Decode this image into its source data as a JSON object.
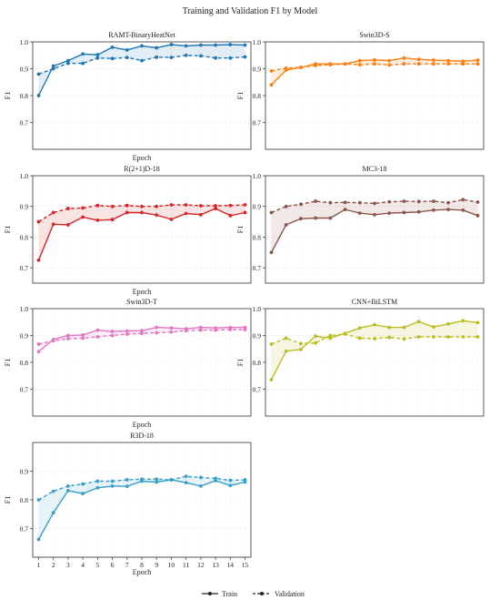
{
  "figure": {
    "title": "Training and Validation F1 by Model"
  },
  "legend": {
    "train_label": "Train",
    "validation_label": "Validation",
    "placement": "bottom-center"
  },
  "chart_data": [
    {
      "type": "line",
      "title": "RAMT-BinaryHeatNet",
      "xlabel": "Epoch",
      "ylabel": "F1",
      "x": [
        1,
        2,
        3,
        4,
        5,
        6,
        7,
        8,
        9,
        10,
        11,
        12,
        13,
        14,
        15
      ],
      "ylim": [
        0.6,
        1.0
      ],
      "yticks": [
        0.7,
        0.8,
        0.9,
        1.0
      ],
      "color": "#1f77b4",
      "show_xticks": false,
      "series": [
        {
          "name": "Train",
          "values": [
            0.8,
            0.91,
            0.93,
            0.955,
            0.952,
            0.98,
            0.97,
            0.985,
            0.978,
            0.99,
            0.985,
            0.988,
            0.988,
            0.99,
            0.988
          ]
        },
        {
          "name": "Validation",
          "values": [
            0.88,
            0.9,
            0.92,
            0.92,
            0.94,
            0.938,
            0.942,
            0.93,
            0.943,
            0.942,
            0.95,
            0.948,
            0.94,
            0.94,
            0.944
          ]
        }
      ]
    },
    {
      "type": "line",
      "title": "Swin3D-S",
      "xlabel": "",
      "ylabel": "F1",
      "x": [
        1,
        2,
        3,
        4,
        5,
        6,
        7,
        8,
        9,
        10,
        11,
        12,
        13,
        14,
        15
      ],
      "ylim": [
        0.6,
        1.0
      ],
      "yticks": [
        0.7,
        0.8,
        0.9,
        1.0
      ],
      "color": "#ff7f0e",
      "show_xticks": false,
      "series": [
        {
          "name": "Train",
          "values": [
            0.84,
            0.895,
            0.905,
            0.918,
            0.918,
            0.918,
            0.93,
            0.933,
            0.93,
            0.94,
            0.935,
            0.932,
            0.93,
            0.928,
            0.932
          ]
        },
        {
          "name": "Validation",
          "values": [
            0.892,
            0.902,
            0.905,
            0.912,
            0.915,
            0.918,
            0.915,
            0.918,
            0.914,
            0.918,
            0.918,
            0.918,
            0.918,
            0.918,
            0.918
          ]
        }
      ]
    },
    {
      "type": "line",
      "title": "R(2+1)D-18",
      "xlabel": "Epoch",
      "ylabel": "F1",
      "x": [
        1,
        2,
        3,
        4,
        5,
        6,
        7,
        8,
        9,
        10,
        11,
        12,
        13,
        14,
        15
      ],
      "ylim": [
        0.65,
        1.0
      ],
      "yticks": [
        0.7,
        0.8,
        0.9,
        1.0
      ],
      "color": "#d62728",
      "show_xticks": false,
      "series": [
        {
          "name": "Train",
          "values": [
            0.725,
            0.842,
            0.84,
            0.865,
            0.855,
            0.857,
            0.88,
            0.88,
            0.872,
            0.858,
            0.877,
            0.873,
            0.893,
            0.87,
            0.88
          ]
        },
        {
          "name": "Validation",
          "values": [
            0.85,
            0.88,
            0.893,
            0.895,
            0.903,
            0.9,
            0.903,
            0.9,
            0.9,
            0.905,
            0.905,
            0.902,
            0.902,
            0.903,
            0.905
          ]
        }
      ]
    },
    {
      "type": "line",
      "title": "MC3-18",
      "xlabel": "",
      "ylabel": "F1",
      "x": [
        1,
        2,
        3,
        4,
        5,
        6,
        7,
        8,
        9,
        10,
        11,
        12,
        13,
        14,
        15
      ],
      "ylim": [
        0.65,
        1.0
      ],
      "yticks": [
        0.7,
        0.8,
        0.9,
        1.0
      ],
      "color": "#8c564b",
      "show_xticks": false,
      "series": [
        {
          "name": "Train",
          "values": [
            0.75,
            0.84,
            0.86,
            0.862,
            0.862,
            0.89,
            0.878,
            0.873,
            0.878,
            0.88,
            0.882,
            0.888,
            0.89,
            0.888,
            0.87
          ]
        },
        {
          "name": "Validation",
          "values": [
            0.88,
            0.9,
            0.907,
            0.917,
            0.912,
            0.913,
            0.912,
            0.91,
            0.915,
            0.917,
            0.916,
            0.917,
            0.912,
            0.922,
            0.914
          ]
        }
      ]
    },
    {
      "type": "line",
      "title": "Swin3D-T",
      "xlabel": "Epoch",
      "ylabel": "F1",
      "x": [
        1,
        2,
        3,
        4,
        5,
        6,
        7,
        8,
        9,
        10,
        11,
        12,
        13,
        14,
        15
      ],
      "ylim": [
        0.6,
        1.0
      ],
      "yticks": [
        0.7,
        0.8,
        0.9,
        1.0
      ],
      "color": "#e377c2",
      "show_xticks": false,
      "series": [
        {
          "name": "Train",
          "values": [
            0.84,
            0.885,
            0.9,
            0.902,
            0.92,
            0.915,
            0.917,
            0.918,
            0.93,
            0.928,
            0.925,
            0.93,
            0.928,
            0.93,
            0.93
          ]
        },
        {
          "name": "Validation",
          "values": [
            0.868,
            0.88,
            0.888,
            0.89,
            0.895,
            0.9,
            0.905,
            0.908,
            0.91,
            0.913,
            0.918,
            0.92,
            0.92,
            0.922,
            0.922
          ]
        }
      ]
    },
    {
      "type": "line",
      "title": "CNN+BiLSTM",
      "xlabel": "",
      "ylabel": "F1",
      "x": [
        1,
        2,
        3,
        4,
        5,
        6,
        7,
        8,
        9,
        10,
        11,
        12,
        13,
        14,
        15
      ],
      "ylim": [
        0.6,
        1.0
      ],
      "yticks": [
        0.7,
        0.8,
        0.9,
        1.0
      ],
      "color": "#bcbd22",
      "show_xticks": false,
      "series": [
        {
          "name": "Train",
          "values": [
            0.735,
            0.842,
            0.848,
            0.898,
            0.89,
            0.908,
            0.928,
            0.94,
            0.93,
            0.93,
            0.952,
            0.932,
            0.943,
            0.955,
            0.948
          ]
        },
        {
          "name": "Validation",
          "values": [
            0.868,
            0.89,
            0.87,
            0.872,
            0.9,
            0.905,
            0.89,
            0.888,
            0.893,
            0.887,
            0.895,
            0.895,
            0.895,
            0.895,
            0.895
          ]
        }
      ]
    },
    {
      "type": "line",
      "title": "R3D-18",
      "xlabel": "Epoch",
      "ylabel": "F1",
      "x": [
        1,
        2,
        3,
        4,
        5,
        6,
        7,
        8,
        9,
        10,
        11,
        12,
        13,
        14,
        15
      ],
      "ylim": [
        0.6,
        1.0
      ],
      "yticks": [
        0.7,
        0.8,
        0.9
      ],
      "color": "#3a9fc7",
      "show_xticks": true,
      "series": [
        {
          "name": "Train",
          "values": [
            0.662,
            0.755,
            0.832,
            0.822,
            0.842,
            0.848,
            0.847,
            0.865,
            0.862,
            0.87,
            0.86,
            0.848,
            0.867,
            0.85,
            0.862
          ]
        },
        {
          "name": "Validation",
          "values": [
            0.8,
            0.83,
            0.848,
            0.855,
            0.865,
            0.865,
            0.87,
            0.872,
            0.872,
            0.87,
            0.882,
            0.878,
            0.875,
            0.868,
            0.87
          ]
        }
      ]
    }
  ]
}
